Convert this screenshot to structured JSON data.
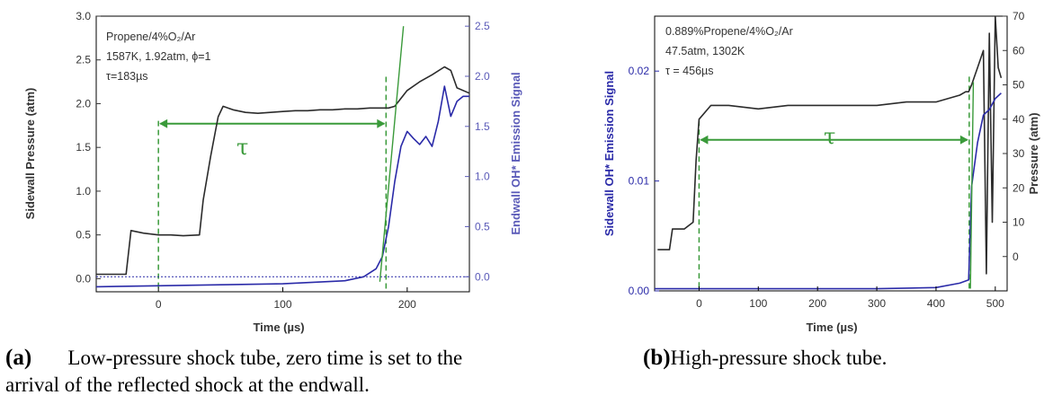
{
  "colors": {
    "pressure": "#2b2b2b",
    "emission": "#2a2aa8",
    "tau": "#3a9a3a",
    "axis_right_a": "#5a5ab8"
  },
  "chart_data": [
    {
      "type": "line",
      "panel_label": "(a)",
      "caption": "Low-pressure shock tube, zero time is set to the arrival of the reflected shock at the endwall.",
      "annotations": [
        "Propene/4%O₂/Ar",
        "1587K, 1.92atm, ϕ=1",
        "τ=183µs"
      ],
      "tau_label": "τ",
      "tau_range": [
        0,
        183
      ],
      "xlabel": "Time (µs)",
      "ylabel": "Sidewall Pressure (atm)",
      "y2label": "Endwall OH* Emission Signal",
      "xlim": [
        -50,
        250
      ],
      "ylim": [
        -0.15,
        3.0
      ],
      "y2lim": [
        -0.15,
        2.6
      ],
      "xticks": [
        0,
        100,
        200
      ],
      "yticks": [
        "0.0",
        "0.5",
        "1.0",
        "1.5",
        "2.0",
        "2.5",
        "3.0"
      ],
      "y2ticks": [
        "0.0",
        "0.5",
        "1.0",
        "1.5",
        "2.0",
        "2.5"
      ],
      "series": [
        {
          "axis": "left",
          "x": [
            -50,
            -26,
            -22,
            -12,
            0,
            10,
            20,
            33,
            36,
            42,
            48,
            52,
            60,
            70,
            80,
            90,
            100,
            110,
            120,
            130,
            140,
            150,
            160,
            170,
            180,
            185,
            190,
            200,
            210,
            220,
            230,
            235,
            240,
            250
          ],
          "values": [
            0.05,
            0.05,
            0.55,
            0.52,
            0.5,
            0.5,
            0.49,
            0.5,
            0.9,
            1.4,
            1.85,
            1.97,
            1.93,
            1.9,
            1.89,
            1.9,
            1.91,
            1.92,
            1.92,
            1.93,
            1.93,
            1.94,
            1.94,
            1.95,
            1.95,
            1.95,
            1.97,
            2.15,
            2.25,
            2.33,
            2.42,
            2.38,
            2.18,
            2.12
          ]
        },
        {
          "axis": "right",
          "x": [
            -50,
            0,
            50,
            100,
            150,
            165,
            175,
            180,
            185,
            190,
            195,
            200,
            205,
            210,
            215,
            220,
            225,
            230,
            235,
            240,
            245,
            250
          ],
          "values": [
            -0.1,
            -0.09,
            -0.08,
            -0.07,
            -0.04,
            0.0,
            0.08,
            0.2,
            0.5,
            0.95,
            1.3,
            1.45,
            1.38,
            1.32,
            1.4,
            1.3,
            1.55,
            1.9,
            1.6,
            1.75,
            1.8,
            1.8
          ]
        }
      ]
    },
    {
      "type": "line",
      "panel_label": "(b)",
      "caption": "High-pressure shock tube.",
      "annotations": [
        "0.889%Propene/4%O₂/Ar",
        "47.5atm, 1302K",
        "τ = 456µs"
      ],
      "tau_label": "τ",
      "tau_range": [
        0,
        456
      ],
      "xlabel": "Time (µs)",
      "ylabel": "Sidewall OH* Emission Signal",
      "y2label": "Pressure (atm)",
      "xlim": [
        -75,
        520
      ],
      "ylim": [
        0.0,
        0.025
      ],
      "y2lim": [
        -10,
        70
      ],
      "xticks": [
        0,
        100,
        200,
        300,
        400,
        500
      ],
      "yticks": [
        "0.00",
        "0.01",
        "0.02"
      ],
      "y2ticks": [
        "0",
        "10",
        "20",
        "30",
        "40",
        "50",
        "60",
        "70"
      ],
      "series": [
        {
          "axis": "right",
          "x": [
            -70,
            -50,
            -45,
            -25,
            -10,
            -5,
            0,
            20,
            50,
            100,
            150,
            200,
            250,
            300,
            350,
            400,
            440,
            450,
            455,
            460,
            470,
            480,
            485,
            490,
            495,
            500,
            505,
            510
          ],
          "values": [
            2,
            2,
            8,
            8,
            10,
            28,
            40,
            44,
            44,
            43,
            44,
            44,
            44,
            44,
            45,
            45,
            47,
            48,
            48,
            50,
            55,
            60,
            -5,
            65,
            10,
            70,
            55,
            52
          ]
        },
        {
          "axis": "left",
          "x": [
            -75,
            0,
            100,
            200,
            300,
            400,
            440,
            455,
            460,
            470,
            480,
            490,
            500,
            510
          ],
          "values": [
            0.0002,
            0.0002,
            0.0002,
            0.0002,
            0.0002,
            0.0003,
            0.0007,
            0.001,
            0.0095,
            0.0135,
            0.016,
            0.0165,
            0.0175,
            0.018
          ]
        }
      ]
    }
  ]
}
